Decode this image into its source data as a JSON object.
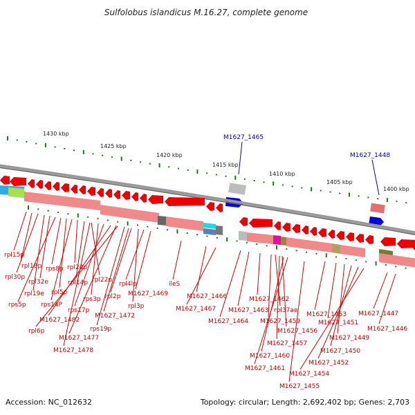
{
  "title": "Sulfolobus islandicus M.16.27, complete genome",
  "scale": {
    "ticks": [
      "1430 kbp",
      "1425 kbp",
      "1420 kbp",
      "1415 kbp",
      "1410 kbp",
      "1405 kbp",
      "1400 kbp"
    ]
  },
  "features": {
    "blue_labels": [
      "M1627_1465",
      "M1627_1448"
    ],
    "gene_labels": [
      "rpl15p",
      "rpl18p",
      "rpl30p",
      "rpl19e",
      "rpl32e",
      "rps5p",
      "rps8p",
      "rpl5p",
      "rps14P",
      "rpl24p",
      "rpl14p",
      "rpl22p",
      "rps3p",
      "rps17p",
      "M1627_1482",
      "rpl6p",
      "rps19p",
      "rpl2p",
      "rpl3p",
      "rpl4lp",
      "M1627_1469",
      "ileS",
      "M1627_1477",
      "M1627_1472",
      "M1627_1478",
      "M1627_1466",
      "M1627_1467",
      "M1627_1464",
      "M1627_1463",
      "M1627_1462",
      "rpl37ae",
      "M1627_1459",
      "M1627_1456",
      "M1627_1457",
      "M1627_1460",
      "M1627_1461",
      "M1627_1453",
      "M1627_1451",
      "M1627_1449",
      "M1627_1450",
      "M1627_1452",
      "M1627_1454",
      "M1627_1455",
      "M1627_1447",
      "M1627_1446"
    ]
  },
  "footer": {
    "accession": "Accession: NC_012632",
    "topology": "Topology: circular; Length: 2,692,402 bp; Genes: 2,703"
  },
  "colors": {
    "gene": "#ee0000",
    "gene_bar": "#f08a8a",
    "scale": "#1a7a1a",
    "blue_feature": "#0000dd",
    "backbone": "#888888"
  }
}
